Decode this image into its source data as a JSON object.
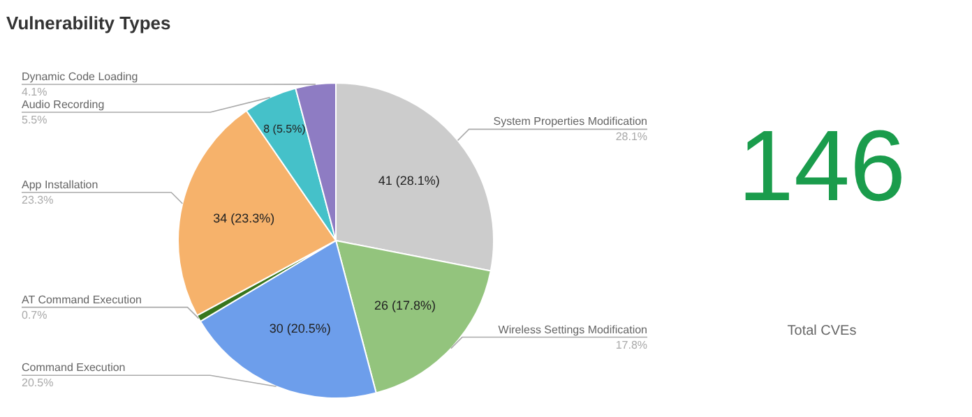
{
  "chart_data": [
    {
      "type": "pie",
      "title": "Vulnerability Types",
      "categories": [
        "System Properties Modification",
        "Wireless Settings Modification",
        "Command Execution",
        "AT Command Execution",
        "App Installation",
        "Audio Recording",
        "Dynamic Code Loading"
      ],
      "values": [
        41,
        26,
        30,
        1,
        34,
        8,
        6
      ],
      "colors": [
        "#cccccc",
        "#93c47d",
        "#6d9eeb",
        "#38761d",
        "#f6b26b",
        "#45c1c9",
        "#8e7cc3"
      ],
      "value_labels": [
        "41 (28.1%)",
        "26 (17.8%)",
        "30 (20.5%)",
        null,
        "34 (23.3%)",
        "8 (5.5%)",
        null
      ],
      "annotations": [
        "28.1%",
        "17.8%",
        "20.5%",
        "0.7%",
        "23.3%",
        "5.5%",
        "4.1%"
      ]
    },
    {
      "type": "other",
      "title": "146",
      "annotations": [
        "Total CVEs"
      ]
    }
  ]
}
